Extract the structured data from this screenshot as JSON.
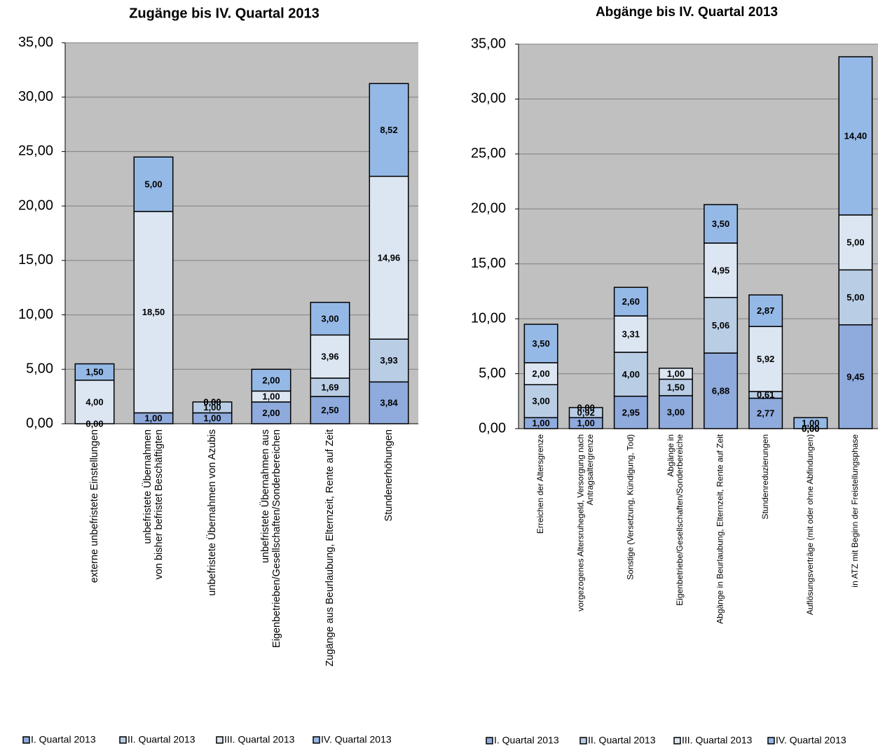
{
  "chart_data": [
    {
      "type": "stacked_bar",
      "title": "Zugänge bis IV. Quartal 2013",
      "categories": [
        "externe unbefristete Einstellungen",
        "unbefristete Übernahmen\nvon bisher befristet Beschäftigten",
        "unbefristete Übernahmen von Azubis",
        "unbefristete Übernahmen aus\nEigenbetrieben/Gesellschaften/Sonderbereichen",
        "Zugänge aus Beurlaubung, Elternzeit, Rente auf Zeit",
        "Stundenerhöhungen"
      ],
      "series": [
        {
          "name": "I. Quartal 2013",
          "color": "#8faadc",
          "values": [
            0,
            1,
            1,
            2,
            2.5,
            3.84
          ],
          "value_labels": [
            "0,00",
            "1,00",
            "1,00",
            "2,00",
            "2,50",
            "3,84"
          ]
        },
        {
          "name": "II. Quartal 2013",
          "color": "#b9cde5",
          "values": [
            null,
            null,
            1,
            null,
            1.69,
            3.93
          ],
          "value_labels": [
            null,
            null,
            "1,00",
            null,
            "1,69",
            "3,93"
          ]
        },
        {
          "name": "III. Quartal 2013",
          "color": "#dce6f2",
          "values": [
            4,
            18.5,
            0,
            1,
            3.96,
            14.96
          ],
          "value_labels": [
            "4,00",
            "18,50",
            "0,00",
            "1,00",
            "3,96",
            "14,96"
          ]
        },
        {
          "name": "IV. Quartal 2013",
          "color": "#95b9e6",
          "values": [
            1.5,
            5,
            0,
            2,
            3,
            8.52
          ],
          "value_labels": [
            "1,50",
            "5,00",
            "0,00",
            "2,00",
            "3,00",
            "8,52"
          ]
        }
      ],
      "ylim": [
        0,
        35
      ],
      "yticks": [
        {
          "value": 0,
          "label": "0,00"
        },
        {
          "value": 5,
          "label": "5,00"
        },
        {
          "value": 10,
          "label": "10,00"
        },
        {
          "value": 15,
          "label": "15,00"
        },
        {
          "value": 20,
          "label": "20,00"
        },
        {
          "value": 25,
          "label": "25,00"
        },
        {
          "value": 30,
          "label": "30,00"
        },
        {
          "value": 35,
          "label": "35,00"
        }
      ],
      "grid": true
    },
    {
      "type": "stacked_bar",
      "title": "Abgänge bis IV. Quartal 2013",
      "categories": [
        "Erreichen der Altersgrenze",
        "vorgezogenes Altersruhegeld, Versorgung nach\nAntragsaltergrenze",
        "Sonstige (Versetzung, Kündigung, Tod)",
        "Abgänge in\nEigenbetriebe/Gesellschaften/Sonderbereiche",
        "Abgänge in Beurlaubung, Elternzeit, Rente auf Zeit",
        "Stundenreduzierungen",
        "Auflösungsverträge (mit oder ohne Abfindungen)",
        "in ATZ mit Beginn der Freistellungsphase"
      ],
      "series": [
        {
          "name": "I. Quartal 2013",
          "color": "#8faadc",
          "values": [
            1,
            1,
            2.95,
            3,
            6.88,
            2.77,
            0,
            9.45
          ],
          "value_labels": [
            "1,00",
            "1,00",
            "2,95",
            "3,00",
            "6,88",
            "2,77",
            "0,00",
            "9,45"
          ]
        },
        {
          "name": "II. Quartal 2013",
          "color": "#b9cde5",
          "values": [
            3,
            0.92,
            4,
            1.5,
            5.06,
            0.61,
            0,
            5
          ],
          "value_labels": [
            "3,00",
            "0,92",
            "4,00",
            "1,50",
            "5,06",
            "0,61",
            "0,00",
            "5,00"
          ]
        },
        {
          "name": "III. Quartal 2013",
          "color": "#dce6f2",
          "values": [
            2,
            0,
            3.31,
            1,
            4.95,
            5.92,
            0,
            5
          ],
          "value_labels": [
            "2,00",
            "0,00",
            "3,31",
            "1,00",
            "4,95",
            "5,92",
            "0,00",
            "5,00"
          ]
        },
        {
          "name": "IV. Quartal 2013",
          "color": "#95b9e6",
          "values": [
            3.5,
            null,
            2.6,
            null,
            3.5,
            2.87,
            1,
            14.4
          ],
          "value_labels": [
            "3,50",
            null,
            "2,60",
            null,
            "3,50",
            "2,87",
            "1,00",
            "14,40"
          ]
        }
      ],
      "ylim": [
        0,
        35
      ],
      "yticks": [
        {
          "value": 0,
          "label": "0,00"
        },
        {
          "value": 5,
          "label": "5,00"
        },
        {
          "value": 10,
          "label": "10,00"
        },
        {
          "value": 15,
          "label": "15,00"
        },
        {
          "value": 20,
          "label": "20,00"
        },
        {
          "value": 25,
          "label": "25,00"
        },
        {
          "value": 30,
          "label": "30,00"
        },
        {
          "value": 35,
          "label": "35,00"
        }
      ],
      "grid": true
    }
  ]
}
